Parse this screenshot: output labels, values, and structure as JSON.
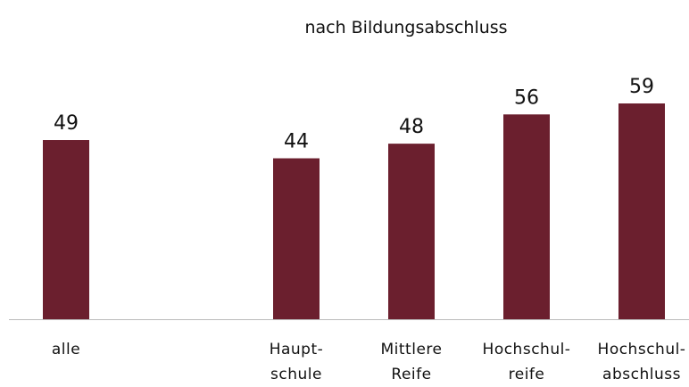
{
  "chart_data": {
    "type": "bar",
    "title": "nach Bildungsabschluss",
    "categories": [
      "alle",
      null,
      "Haupt-\nschule",
      "Mittlere\nReife",
      "Hochschul-\nreife",
      "Hochschul-\nabschluss"
    ],
    "values": [
      49,
      null,
      44,
      48,
      56,
      59
    ],
    "color": "#6b1f2e"
  }
}
